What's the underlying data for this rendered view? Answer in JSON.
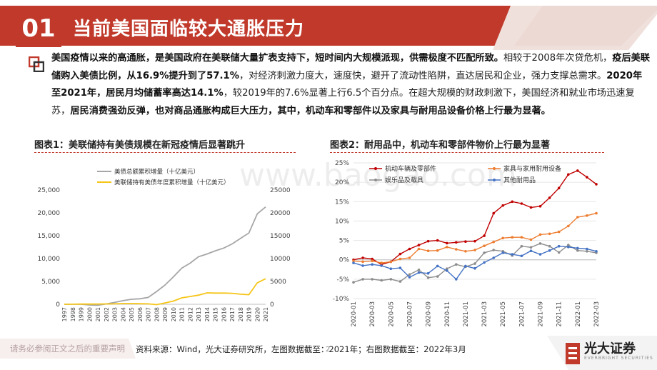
{
  "header": {
    "section_number": "01",
    "title": "当前美国面临较大通胀压力"
  },
  "paragraph": {
    "s1": "美国疫情以来的高通胀，是美国政府在美联储大量扩表支持下，短时间内大规模派现，供需极度不匹配所致。",
    "s2": "相较于2008年次贷危机，",
    "s3": "疫后美联储购入美债比例，从16.9%提升到了57.1%",
    "s4": "，对经济刺激力度大，速度快，避开了流动性陷阱，直达居民和企业，强力支撑总需求。",
    "s5": "2020年至2021年，居民月均储蓄率高达14.1%",
    "s6": "，较2019年的7.6%显著上行6.5个百分点。在超大规模的财政刺激下，美国经济和就业市场迅速复苏，",
    "s7": "居民消费强劲反弹，也对商品通胀构成巨大压力，其中，机动车和零部件以及家具与耐用品设备价格上行最为显著。"
  },
  "charts_captions": {
    "chart1": "图表1：美联储持有美债规模在新冠疫情后显著跳升",
    "chart2": "图表2：耐用品中，机动车和零部件物价上行最为显著"
  },
  "footer": {
    "disclaimer": "请务必参阅正文之后的重要声明",
    "source": "资料来源：Wind，光大证券研究所，左图数据截至：2021年；右图数据截至：2022年3月",
    "page": "2",
    "logo_text": "光大证券",
    "logo_sub": "EVERBRIGHT SECURITIES"
  },
  "watermark": "www.baogao.com",
  "colors": {
    "brand_red": "#c0392b",
    "gray_series": "#a6a6a6",
    "yellow_series": "#f5c518",
    "auto_series": "#c00000",
    "furniture_series": "#ed7d31",
    "toys_series": "#8c8c8c",
    "other_series": "#4472c4"
  },
  "chart_data": [
    {
      "type": "line",
      "x": [
        1997,
        1998,
        1999,
        2000,
        2001,
        2002,
        2003,
        2004,
        2005,
        2006,
        2007,
        2008,
        2009,
        2010,
        2011,
        2012,
        2013,
        2014,
        2015,
        2016,
        2017,
        2018,
        2019,
        2020,
        2021
      ],
      "x_tick_labels": [
        "1997",
        "1998",
        "1999",
        "2000",
        "2001",
        "2002",
        "2003",
        "2004",
        "2005",
        "2006",
        "2007",
        "2008",
        "2009",
        "2010",
        "2011",
        "2012",
        "2013",
        "2014",
        "2015",
        "2016",
        "2017",
        "2018",
        "2019",
        "2020",
        "2021"
      ],
      "series": [
        {
          "name": "美债总额累积增量（十亿美元）",
          "axis": "left",
          "color": "#a6a6a6",
          "values": [
            0,
            20,
            0,
            -150,
            -200,
            80,
            400,
            800,
            1100,
            1200,
            1500,
            2800,
            4200,
            6000,
            7900,
            9000,
            10400,
            11000,
            11700,
            12300,
            13200,
            14400,
            15600,
            19800,
            21300
          ]
        },
        {
          "name": "美联储持有美债年度累积增量（十亿美元）",
          "axis": "right",
          "color": "#f5c518",
          "values": [
            0,
            20,
            40,
            50,
            60,
            80,
            100,
            150,
            150,
            120,
            100,
            -80,
            300,
            700,
            1400,
            1700,
            2000,
            2500,
            2450,
            2450,
            2400,
            2200,
            2100,
            4700,
            5600
          ]
        }
      ],
      "yleft_ticks": [
        "0",
        "5,000",
        "10,000",
        "15,000",
        "20,000",
        "25,000"
      ],
      "yright_ticks": [
        "0",
        "5000",
        "10000",
        "15000",
        "20000",
        "25000"
      ],
      "ylim": [
        0,
        25000
      ]
    },
    {
      "type": "line",
      "x": [
        "2020-01",
        "2020-02",
        "2020-03",
        "2020-04",
        "2020-05",
        "2020-06",
        "2020-07",
        "2020-08",
        "2020-09",
        "2020-10",
        "2020-11",
        "2020-12",
        "2021-01",
        "2021-02",
        "2021-03",
        "2021-04",
        "2021-05",
        "2021-06",
        "2021-07",
        "2021-08",
        "2021-09",
        "2021-10",
        "2021-11",
        "2021-12",
        "2022-01",
        "2022-02",
        "2022-03"
      ],
      "x_tick_labels": [
        "2020-01",
        "2020-03",
        "2020-05",
        "2020-07",
        "2020-09",
        "2020-11",
        "2021-01",
        "2021-03",
        "2021-05",
        "2021-07",
        "2021-09",
        "2021-11",
        "2022-01",
        "2022-03"
      ],
      "ylim": [
        -10,
        25
      ],
      "y_ticks": [
        "-10%",
        "-5%",
        "0%",
        "5%",
        "10%",
        "15%",
        "20%",
        "25%"
      ],
      "series": [
        {
          "name": "机动车辆及零部件",
          "color": "#c00000",
          "values": [
            0,
            0.5,
            0.2,
            -1.2,
            -0.5,
            1.5,
            2.8,
            3.8,
            4.8,
            5,
            4.3,
            4.5,
            4.7,
            4.8,
            6.2,
            12,
            14,
            15,
            14.5,
            13.5,
            13.8,
            16,
            18.5,
            22,
            23,
            21.3,
            19.5
          ]
        },
        {
          "name": "家具与家用耐用设备",
          "color": "#ed7d31",
          "values": [
            -0.3,
            -0.5,
            -0.3,
            -0.8,
            -0.5,
            0.2,
            0.5,
            2.8,
            2.3,
            2.4,
            3.3,
            2.7,
            2.2,
            2.5,
            3.6,
            4.6,
            5.6,
            5.8,
            5.8,
            5.2,
            6.5,
            6.7,
            7.2,
            8.7,
            11,
            11.4,
            12
          ]
        },
        {
          "name": "娱乐品及载具",
          "color": "#8c8c8c",
          "values": [
            -5.8,
            -5,
            -5,
            -5.3,
            -5,
            -5.6,
            -3.8,
            -2.6,
            -4.6,
            -4.3,
            -2.3,
            -1.2,
            -1.8,
            -1,
            1.8,
            2.5,
            2.2,
            1.1,
            3.5,
            3.2,
            4.2,
            3.5,
            1.9,
            3.8,
            2.4,
            2.2,
            1.8
          ]
        },
        {
          "name": "其他耐用品",
          "color": "#4472c4",
          "values": [
            -0.8,
            -1.5,
            -1.2,
            -1.5,
            -2.3,
            -2.1,
            -4.5,
            -3.3,
            -3.5,
            -1.6,
            -2.8,
            -5,
            -1.6,
            -2.2,
            -0.7,
            0.5,
            1.8,
            1.4,
            1,
            2.3,
            1.4,
            2.4,
            3.5,
            3.3,
            3,
            2.8,
            2.2
          ]
        }
      ]
    }
  ]
}
